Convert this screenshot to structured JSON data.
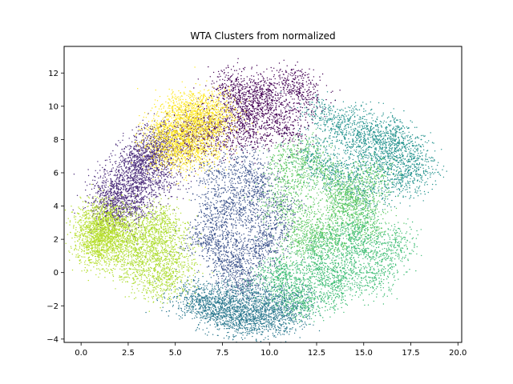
{
  "chart_data": {
    "type": "scatter",
    "title": "WTA Clusters from normalized",
    "xlabel": "",
    "ylabel": "",
    "xlim": [
      -0.9,
      20.2
    ],
    "ylim": [
      -4.2,
      13.6
    ],
    "xticks": [
      0.0,
      2.5,
      5.0,
      7.5,
      10.0,
      12.5,
      15.0,
      17.5,
      20.0
    ],
    "xtick_labels": [
      "0.0",
      "2.5",
      "5.0",
      "7.5",
      "10.0",
      "12.5",
      "15.0",
      "17.5",
      "20.0"
    ],
    "yticks": [
      -4,
      -2,
      0,
      2,
      4,
      6,
      8,
      10,
      12
    ],
    "ytick_labels": [
      "−4",
      "−2",
      "0",
      "2",
      "4",
      "6",
      "8",
      "10",
      "12"
    ],
    "grid": false,
    "legend": "none",
    "series": [
      {
        "color": "#2a788e",
        "x": [
          9.0,
          8.5,
          7.6,
          10.2,
          6.3,
          11.2,
          9.7,
          8.1,
          7.0,
          10.8,
          5.6,
          8.8,
          9.4,
          7.9,
          10.5,
          6.8
        ],
        "y": [
          -2.2,
          -2.6,
          -1.9,
          -2.4,
          -1.6,
          -2.0,
          -2.8,
          -1.4,
          -2.3,
          -1.7,
          -1.5,
          -3.0,
          -1.2,
          -2.7,
          -2.9,
          -2.1
        ]
      },
      {
        "color": "#3b528b",
        "x": [
          7.5,
          8.4,
          9.3,
          7.8,
          8.9,
          10.1,
          6.5,
          7.2,
          9.0,
          8.2,
          10.4,
          6.9,
          9.6,
          8.7,
          7.6,
          9.9
        ],
        "y": [
          2.0,
          3.5,
          1.2,
          0.2,
          4.8,
          2.6,
          1.8,
          5.8,
          6.5,
          0.8,
          3.9,
          3.0,
          5.2,
          -0.5,
          4.3,
          1.6
        ]
      },
      {
        "color": "#21918c",
        "x": [
          15.5,
          16.5,
          14.2,
          17.4,
          13.0,
          15.8,
          16.9,
          14.8,
          12.2,
          17.8,
          15.2,
          13.8,
          16.2,
          14.5,
          12.8,
          17.0
        ],
        "y": [
          6.5,
          7.2,
          5.6,
          6.8,
          6.2,
          8.0,
          5.4,
          7.6,
          7.0,
          6.1,
          4.8,
          8.6,
          8.4,
          9.0,
          9.6,
          7.8
        ]
      },
      {
        "color": "#5ec962",
        "x": [
          12.0,
          13.5,
          14.6,
          11.2,
          10.6,
          12.8,
          14.0,
          15.2,
          11.8,
          13.2,
          12.4,
          10.9,
          14.9,
          13.9,
          11.5,
          15.6
        ],
        "y": [
          3.0,
          4.5,
          3.5,
          5.5,
          4.0,
          6.0,
          5.2,
          2.6,
          7.2,
          1.8,
          2.2,
          6.6,
          4.6,
          3.9,
          1.6,
          5.8
        ]
      },
      {
        "color": "#3dbc74",
        "x": [
          12.5,
          13.8,
          15.0,
          11.0,
          12.0,
          14.2,
          16.0,
          13.2,
          10.8,
          15.5,
          12.8,
          14.7,
          11.6,
          13.6,
          16.8,
          10.2
        ],
        "y": [
          0.5,
          -0.2,
          1.2,
          -0.8,
          -1.8,
          2.0,
          0.8,
          -1.2,
          0.2,
          -0.5,
          1.6,
          2.6,
          -1.5,
          0.0,
          1.8,
          -0.4
        ]
      },
      {
        "color": "#440154",
        "x": [
          8.0,
          9.5,
          10.5,
          7.2,
          11.2,
          8.8,
          6.5,
          10.0,
          9.0,
          11.8,
          7.8,
          6.0,
          10.8,
          9.2,
          8.4,
          5.6
        ],
        "y": [
          9.0,
          10.5,
          9.5,
          8.0,
          11.5,
          10.0,
          9.0,
          11.0,
          8.2,
          10.6,
          11.2,
          8.6,
          8.4,
          9.4,
          10.8,
          7.6
        ]
      },
      {
        "color": "#482878",
        "x": [
          2.5,
          3.2,
          1.8,
          2.8,
          3.8,
          2.2,
          3.4,
          4.2,
          1.6,
          2.9,
          4.0,
          2.0,
          3.6,
          1.4,
          4.4,
          3.0
        ],
        "y": [
          5.5,
          6.5,
          4.5,
          4.2,
          7.2,
          3.8,
          5.0,
          7.8,
          5.2,
          6.0,
          8.2,
          3.4,
          6.8,
          4.0,
          5.8,
          7.0
        ]
      },
      {
        "color": "#fde725",
        "x": [
          5.5,
          6.0,
          4.8,
          6.8,
          5.2,
          4.5,
          6.4,
          5.8,
          7.2,
          5.0,
          6.2,
          4.2,
          7.0,
          5.6,
          6.6,
          4.9
        ],
        "y": [
          8.5,
          9.3,
          8.0,
          8.8,
          9.8,
          7.4,
          7.8,
          10.2,
          9.6,
          8.9,
          7.0,
          8.4,
          10.0,
          7.6,
          9.0,
          6.8
        ]
      },
      {
        "color": "#b5de2b",
        "x": [
          1.0,
          1.2,
          0.8,
          1.5,
          0.6,
          1.8,
          1.3,
          0.9,
          1.6,
          1.1,
          2.0,
          0.7
        ],
        "y": [
          2.0,
          1.5,
          2.8,
          2.3,
          1.6,
          3.2,
          3.6,
          1.2,
          1.9,
          2.5,
          2.6,
          3.0
        ]
      },
      {
        "color": "#addc30",
        "x": [
          4.0,
          3.2,
          4.8,
          2.8,
          4.5,
          3.6,
          4.2,
          3.0,
          5.0,
          3.8,
          2.5,
          4.6
        ],
        "y": [
          0.5,
          1.5,
          -0.2,
          0.0,
          1.8,
          2.5,
          -0.8,
          2.0,
          0.8,
          3.2,
          1.0,
          2.8
        ]
      }
    ]
  }
}
